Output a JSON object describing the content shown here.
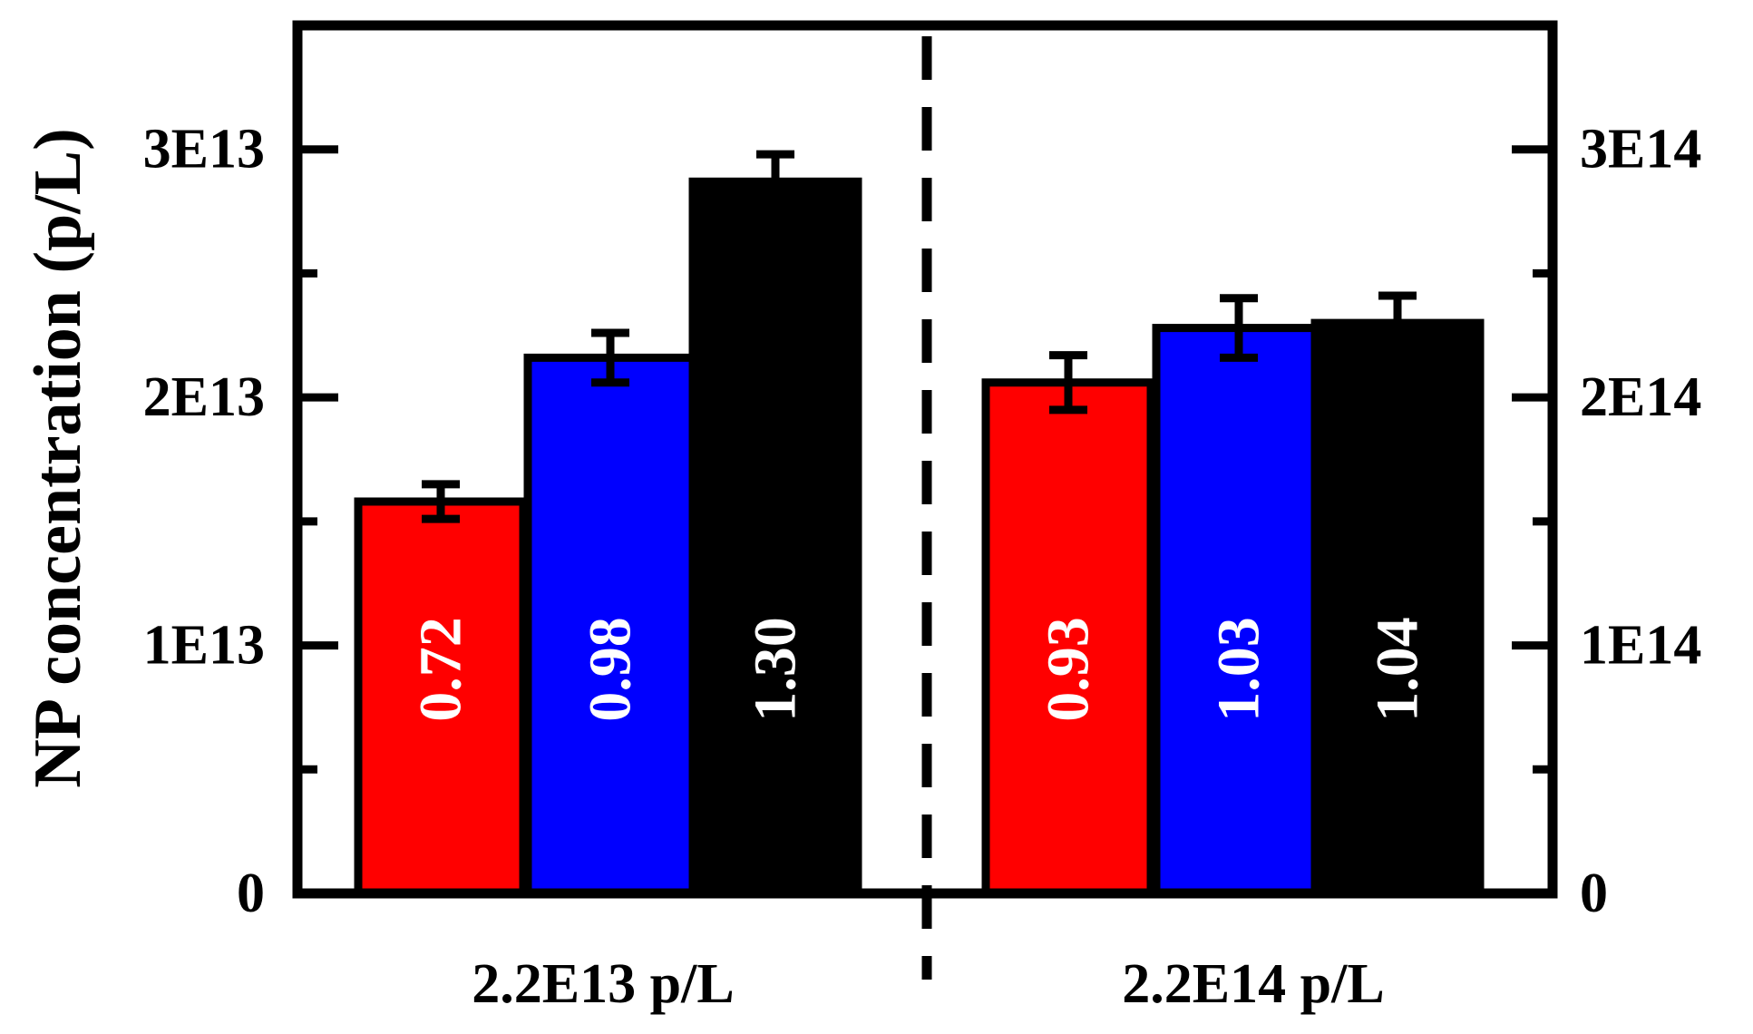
{
  "chart_data": {
    "type": "bar",
    "title": "",
    "ylabel": "NP concentration (p/L)",
    "xlabel": "",
    "grid": false,
    "groups": [
      {
        "category": "2.2E13 p/L",
        "axis": "left",
        "ylim": [
          0,
          35000000000000
        ],
        "bars": [
          {
            "series": "red",
            "value": 15800000000000,
            "error": 700000000000,
            "label": "0.72"
          },
          {
            "series": "blue",
            "value": 21600000000000,
            "error": 1000000000000,
            "label": "0.98"
          },
          {
            "series": "black",
            "value": 28700000000000,
            "error": 1100000000000,
            "label": "1.30"
          }
        ]
      },
      {
        "category": "2.2E14 p/L",
        "axis": "right",
        "ylim": [
          0,
          350000000000000
        ],
        "bars": [
          {
            "series": "red",
            "value": 206000000000000,
            "error": 11000000000000,
            "label": "0.93"
          },
          {
            "series": "blue",
            "value": 228000000000000,
            "error": 12000000000000,
            "label": "1.03"
          },
          {
            "series": "black",
            "value": 230000000000000,
            "error": 11000000000000,
            "label": "1.04"
          }
        ]
      }
    ],
    "left_axis": {
      "ticks": [
        0,
        10000000000000,
        20000000000000,
        30000000000000
      ],
      "tick_labels": [
        "0",
        "1E13",
        "2E13",
        "3E13"
      ]
    },
    "right_axis": {
      "ticks": [
        0,
        100000000000000,
        200000000000000,
        300000000000000
      ],
      "tick_labels": [
        "0",
        "1E14",
        "2E14",
        "3E14"
      ]
    },
    "divider": "dashed vertical line between groups"
  },
  "colors": {
    "red": "#ff0000",
    "blue": "#0000ff",
    "black": "#000000",
    "red_text": "#ffffff",
    "blue_text": "#ffffff",
    "black_text": "#ffffff"
  }
}
